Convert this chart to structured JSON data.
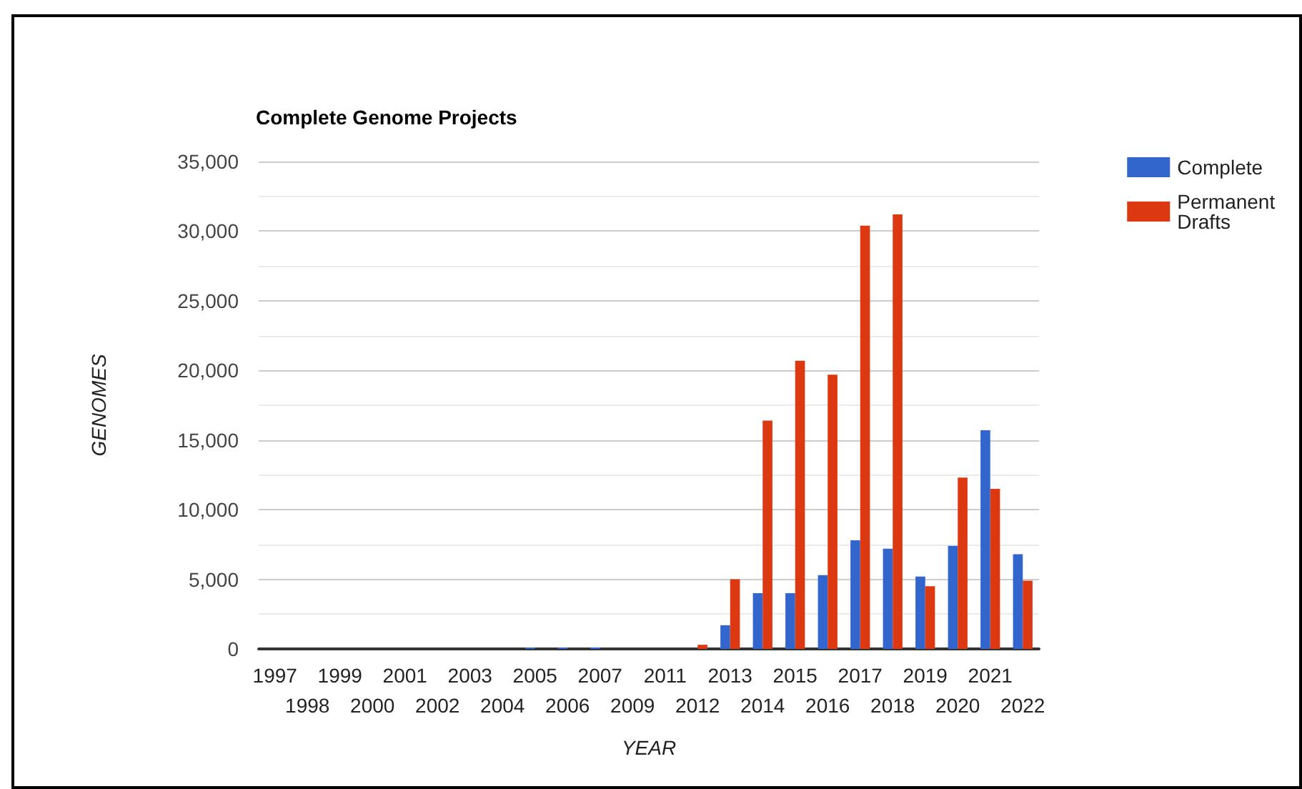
{
  "chart_data": {
    "type": "bar",
    "title": "Complete Genome Projects",
    "xlabel": "YEAR",
    "ylabel": "GENOMES",
    "categories": [
      "1997",
      "1998",
      "1999",
      "2000",
      "2001",
      "2002",
      "2003",
      "2004",
      "2005",
      "2006",
      "2007",
      "2009",
      "2011",
      "2012",
      "2013",
      "2014",
      "2015",
      "2016",
      "2017",
      "2018",
      "2019",
      "2020",
      "2021",
      "2022"
    ],
    "series": [
      {
        "name": "Complete",
        "color": "#3366cc",
        "values": [
          0,
          0,
          0,
          0,
          0,
          0,
          0,
          0,
          100,
          100,
          100,
          0,
          0,
          0,
          1700,
          4000,
          4000,
          5300,
          7800,
          7200,
          5200,
          7400,
          15700,
          6800
        ]
      },
      {
        "name": "Permanent Drafts",
        "color": "#dc3912",
        "values": [
          0,
          0,
          0,
          0,
          0,
          0,
          0,
          0,
          0,
          0,
          0,
          0,
          0,
          300,
          5000,
          16400,
          20700,
          19700,
          30400,
          31200,
          4500,
          12300,
          11500,
          4900
        ]
      }
    ],
    "ylim": [
      0,
      35000
    ],
    "yticks": [
      {
        "value": 0,
        "label": "0"
      },
      {
        "value": 5000,
        "label": "5,000"
      },
      {
        "value": 10000,
        "label": "10,000"
      },
      {
        "value": 15000,
        "label": "15,000"
      },
      {
        "value": 20000,
        "label": "20,000"
      },
      {
        "value": 25000,
        "label": "25,000"
      },
      {
        "value": 30000,
        "label": "30,000"
      },
      {
        "value": 35000,
        "label": "35,000"
      }
    ],
    "grid": true,
    "legend": "top right"
  }
}
